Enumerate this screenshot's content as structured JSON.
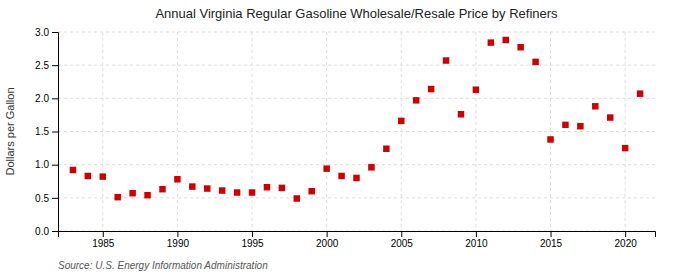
{
  "chart_data": {
    "type": "scatter",
    "title": "Annual Virginia Regular Gasoline Wholesale/Resale Price by Refiners",
    "ylabel": "Dollars per Gallon",
    "source": "Source: U.S. Energy Information Administration",
    "x": [
      1983,
      1984,
      1985,
      1986,
      1987,
      1988,
      1989,
      1990,
      1991,
      1992,
      1993,
      1994,
      1995,
      1996,
      1997,
      1998,
      1999,
      2000,
      2001,
      2002,
      2003,
      2004,
      2005,
      2006,
      2007,
      2008,
      2009,
      2010,
      2011,
      2012,
      2013,
      2014,
      2015,
      2016,
      2017,
      2018,
      2019,
      2020,
      2021
    ],
    "values": [
      0.92,
      0.83,
      0.82,
      0.51,
      0.57,
      0.54,
      0.63,
      0.78,
      0.67,
      0.64,
      0.61,
      0.58,
      0.58,
      0.66,
      0.65,
      0.49,
      0.6,
      0.94,
      0.83,
      0.8,
      0.96,
      1.24,
      1.66,
      1.97,
      2.14,
      2.57,
      1.76,
      2.13,
      2.84,
      2.88,
      2.77,
      2.55,
      1.38,
      1.6,
      1.58,
      1.88,
      1.71,
      1.25,
      2.07
    ],
    "color": "#cc0000",
    "marker": "square",
    "xlim": [
      1982,
      2022
    ],
    "ylim": [
      0.0,
      3.0
    ],
    "xticks": [
      1985,
      1990,
      1995,
      2000,
      2005,
      2010,
      2015,
      2020
    ],
    "yticks": [
      {
        "value": 0,
        "label": "0.0"
      },
      0.5,
      {
        "value": 1,
        "label": "1.0"
      },
      1.5,
      {
        "value": 2,
        "label": "2.0"
      },
      2.5,
      {
        "value": 3,
        "label": "3.0"
      }
    ],
    "grid": true
  }
}
